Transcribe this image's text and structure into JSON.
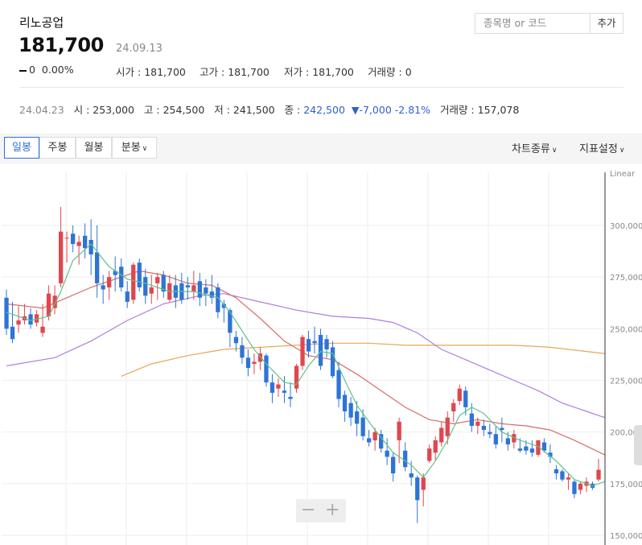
{
  "stock": {
    "name": "리노공업",
    "price": "181,700",
    "date": "24.09.13",
    "change": "0",
    "change_pct": "0.00%",
    "open_label": "시가",
    "open": "181,700",
    "high_label": "고가",
    "high": "181,700",
    "low_label": "저가",
    "low": "181,700",
    "volume_label": "거래량",
    "volume": "0"
  },
  "search": {
    "placeholder": "종목명 or 코드",
    "add_label": "추가"
  },
  "history": {
    "date": "24.04.23",
    "open_label": "시",
    "open": "253,000",
    "high_label": "고",
    "high": "254,500",
    "low_label": "저",
    "low": "241,500",
    "close_label": "종",
    "close": "242,500",
    "change": "▼-7,000",
    "change_pct": "-2.81%",
    "volume_label": "거래량",
    "volume": "157,078"
  },
  "tabs": [
    "일봉",
    "주봉",
    "월봉",
    "분봉"
  ],
  "tools": {
    "chart_type": "차트종류",
    "indicators": "지표설정"
  },
  "chart_data": {
    "type": "candlestick",
    "scale_label": "Linear",
    "y_ticks": [
      "300,000",
      "275,000",
      "250,000",
      "225,000",
      "200,000",
      "175,000",
      "150,000"
    ],
    "ylim": [
      150000,
      311000
    ],
    "colors": {
      "up": "#e0464e",
      "down": "#2e74d6",
      "ma5": "#5dc38a",
      "ma20": "#d96b6b",
      "ma60": "#b07ed8",
      "ma120": "#e8a65a",
      "grid": "#eeeeee"
    },
    "candles": [
      [
        265000,
        269000,
        247000,
        250000
      ],
      [
        251000,
        263000,
        243000,
        245000
      ],
      [
        252000,
        261000,
        248000,
        254000
      ],
      [
        254000,
        262000,
        252000,
        256000
      ],
      [
        257000,
        260000,
        250000,
        252000
      ],
      [
        253000,
        259000,
        251000,
        257000
      ],
      [
        248000,
        262000,
        246000,
        251000
      ],
      [
        256000,
        271000,
        254000,
        267000
      ],
      [
        260000,
        271000,
        257000,
        266000
      ],
      [
        272000,
        309000,
        270000,
        297000
      ],
      [
        294000,
        297000,
        282000,
        294000
      ],
      [
        296000,
        300000,
        287000,
        291000
      ],
      [
        290000,
        295000,
        281000,
        292000
      ],
      [
        295000,
        301000,
        284000,
        289000
      ],
      [
        293000,
        303000,
        276000,
        286000
      ],
      [
        287000,
        300000,
        265000,
        272000
      ],
      [
        271000,
        276000,
        262000,
        269000
      ],
      [
        270000,
        278000,
        264000,
        275000
      ],
      [
        278000,
        285000,
        268000,
        276000
      ],
      [
        280000,
        284000,
        268000,
        270000
      ],
      [
        268000,
        273000,
        260000,
        263000
      ],
      [
        264000,
        282000,
        262000,
        281000
      ],
      [
        282000,
        284000,
        268000,
        270000
      ],
      [
        275000,
        279000,
        262000,
        266000
      ],
      [
        267000,
        276000,
        262000,
        270000
      ],
      [
        272000,
        277000,
        264000,
        275000
      ],
      [
        276000,
        278000,
        265000,
        268000
      ],
      [
        264000,
        276000,
        263000,
        272000
      ],
      [
        271000,
        276000,
        260000,
        265000
      ],
      [
        272000,
        277000,
        262000,
        264000
      ],
      [
        271000,
        275000,
        264000,
        270000
      ],
      [
        268000,
        278000,
        264000,
        271000
      ],
      [
        273000,
        277000,
        261000,
        265000
      ],
      [
        270000,
        274000,
        261000,
        267000
      ],
      [
        268000,
        276000,
        262000,
        265000
      ],
      [
        270000,
        272000,
        255000,
        258000
      ],
      [
        262000,
        264000,
        253000,
        260000
      ],
      [
        259000,
        260000,
        241000,
        248000
      ],
      [
        246000,
        249000,
        239000,
        243000
      ],
      [
        242000,
        246000,
        233000,
        236000
      ],
      [
        236000,
        240000,
        227000,
        231000
      ],
      [
        233000,
        238000,
        228000,
        234000
      ],
      [
        234000,
        241000,
        230000,
        238000
      ],
      [
        237000,
        238000,
        222000,
        224000
      ],
      [
        224000,
        228000,
        214000,
        219000
      ],
      [
        221000,
        226000,
        217000,
        223000
      ],
      [
        220000,
        227000,
        214000,
        219000
      ],
      [
        217000,
        224000,
        212000,
        216000
      ],
      [
        221000,
        233000,
        219000,
        232000
      ],
      [
        232000,
        247000,
        230000,
        246000
      ],
      [
        245000,
        249000,
        236000,
        239000
      ],
      [
        244000,
        251000,
        238000,
        243000
      ],
      [
        247000,
        250000,
        230000,
        232000
      ],
      [
        245000,
        247000,
        236000,
        240000
      ],
      [
        241000,
        244000,
        226000,
        227000
      ],
      [
        230000,
        234000,
        212000,
        216000
      ],
      [
        218000,
        220000,
        205000,
        210000
      ],
      [
        214000,
        217000,
        203000,
        207000
      ],
      [
        210000,
        215000,
        198000,
        204000
      ],
      [
        207000,
        211000,
        196000,
        198000
      ],
      [
        197000,
        201000,
        193000,
        195000
      ],
      [
        196000,
        202000,
        191000,
        200000
      ],
      [
        199000,
        201000,
        190000,
        192000
      ],
      [
        191000,
        197000,
        184000,
        188000
      ],
      [
        188000,
        190000,
        176000,
        180000
      ],
      [
        196000,
        207000,
        185000,
        205000
      ],
      [
        191000,
        195000,
        181000,
        183000
      ],
      [
        180000,
        186000,
        174000,
        178000
      ],
      [
        178000,
        179000,
        156000,
        167000
      ],
      [
        172000,
        180000,
        164000,
        178000
      ],
      [
        186000,
        194000,
        185000,
        192000
      ],
      [
        190000,
        198000,
        186000,
        196000
      ],
      [
        195000,
        205000,
        193000,
        202000
      ],
      [
        198000,
        210000,
        194000,
        207000
      ],
      [
        210000,
        216000,
        205000,
        214000
      ],
      [
        215000,
        223000,
        213000,
        221000
      ],
      [
        220000,
        222000,
        208000,
        212000
      ],
      [
        209000,
        214000,
        200000,
        203000
      ],
      [
        203000,
        207000,
        199000,
        205000
      ],
      [
        203000,
        206000,
        198000,
        201000
      ],
      [
        200000,
        204000,
        197000,
        199000
      ],
      [
        199000,
        203000,
        192000,
        194000
      ],
      [
        202000,
        207000,
        195000,
        201000
      ],
      [
        197000,
        200000,
        191000,
        194000
      ],
      [
        195000,
        201000,
        192000,
        199000
      ],
      [
        192000,
        197000,
        190000,
        191000
      ],
      [
        193000,
        196000,
        189000,
        191000
      ],
      [
        192000,
        196000,
        188000,
        190000
      ],
      [
        189000,
        196000,
        188000,
        196000
      ],
      [
        195000,
        197000,
        190000,
        191000
      ],
      [
        190000,
        194000,
        185000,
        188000
      ],
      [
        182000,
        184000,
        177000,
        180000
      ],
      [
        181000,
        182000,
        176000,
        177000
      ],
      [
        177000,
        180000,
        172000,
        178000
      ],
      [
        176000,
        177000,
        168000,
        170000
      ],
      [
        172000,
        176000,
        170000,
        175000
      ],
      [
        174000,
        178000,
        171000,
        176000
      ],
      [
        175000,
        176000,
        172000,
        173000
      ],
      [
        177000,
        187000,
        176000,
        181700
      ]
    ],
    "ma5": [
      [
        0,
        258000
      ],
      [
        4,
        254000
      ],
      [
        7,
        256000
      ],
      [
        9,
        268000
      ],
      [
        11,
        283000
      ],
      [
        14,
        291000
      ],
      [
        17,
        280000
      ],
      [
        20,
        274000
      ],
      [
        23,
        272000
      ],
      [
        27,
        268000
      ],
      [
        31,
        268000
      ],
      [
        35,
        265000
      ],
      [
        37,
        258000
      ],
      [
        39,
        249000
      ],
      [
        41,
        240000
      ],
      [
        43,
        233000
      ],
      [
        46,
        224000
      ],
      [
        48,
        223000
      ],
      [
        50,
        232000
      ],
      [
        52,
        239000
      ],
      [
        54,
        238000
      ],
      [
        56,
        225000
      ],
      [
        58,
        213000
      ],
      [
        61,
        201000
      ],
      [
        64,
        190000
      ],
      [
        67,
        184000
      ],
      [
        69,
        178000
      ],
      [
        71,
        186000
      ],
      [
        73,
        196000
      ],
      [
        75,
        208000
      ],
      [
        77,
        212000
      ],
      [
        79,
        209000
      ],
      [
        82,
        200000
      ],
      [
        85,
        196000
      ],
      [
        88,
        193000
      ],
      [
        91,
        186000
      ],
      [
        94,
        177000
      ],
      [
        97,
        174000
      ],
      [
        99,
        176000
      ]
    ],
    "ma20": [
      [
        0,
        262000
      ],
      [
        6,
        260000
      ],
      [
        10,
        265000
      ],
      [
        14,
        270000
      ],
      [
        18,
        274000
      ],
      [
        22,
        278000
      ],
      [
        26,
        276000
      ],
      [
        30,
        272000
      ],
      [
        34,
        271000
      ],
      [
        38,
        265000
      ],
      [
        42,
        255000
      ],
      [
        46,
        244000
      ],
      [
        50,
        237000
      ],
      [
        54,
        235000
      ],
      [
        58,
        228000
      ],
      [
        62,
        220000
      ],
      [
        66,
        212000
      ],
      [
        70,
        206000
      ],
      [
        74,
        204000
      ],
      [
        78,
        206000
      ],
      [
        82,
        204000
      ],
      [
        86,
        203000
      ],
      [
        90,
        201000
      ],
      [
        94,
        196000
      ],
      [
        99,
        189000
      ]
    ],
    "ma60": [
      [
        0,
        232000
      ],
      [
        8,
        236000
      ],
      [
        14,
        244000
      ],
      [
        20,
        254000
      ],
      [
        26,
        262000
      ],
      [
        32,
        266000
      ],
      [
        36,
        267000
      ],
      [
        42,
        263000
      ],
      [
        48,
        259000
      ],
      [
        54,
        256000
      ],
      [
        60,
        255000
      ],
      [
        64,
        253000
      ],
      [
        68,
        248000
      ],
      [
        72,
        240000
      ],
      [
        76,
        235000
      ],
      [
        80,
        230000
      ],
      [
        84,
        225000
      ],
      [
        88,
        220000
      ],
      [
        92,
        214000
      ],
      [
        96,
        210000
      ],
      [
        99,
        207000
      ]
    ],
    "ma120": [
      [
        19,
        227000
      ],
      [
        24,
        233000
      ],
      [
        30,
        237000
      ],
      [
        36,
        240000
      ],
      [
        42,
        241000
      ],
      [
        48,
        242000
      ],
      [
        54,
        243000
      ],
      [
        60,
        243000
      ],
      [
        66,
        242000
      ],
      [
        72,
        242000
      ],
      [
        78,
        242000
      ],
      [
        84,
        242000
      ],
      [
        90,
        241000
      ],
      [
        96,
        239000
      ],
      [
        99,
        238000
      ]
    ]
  }
}
